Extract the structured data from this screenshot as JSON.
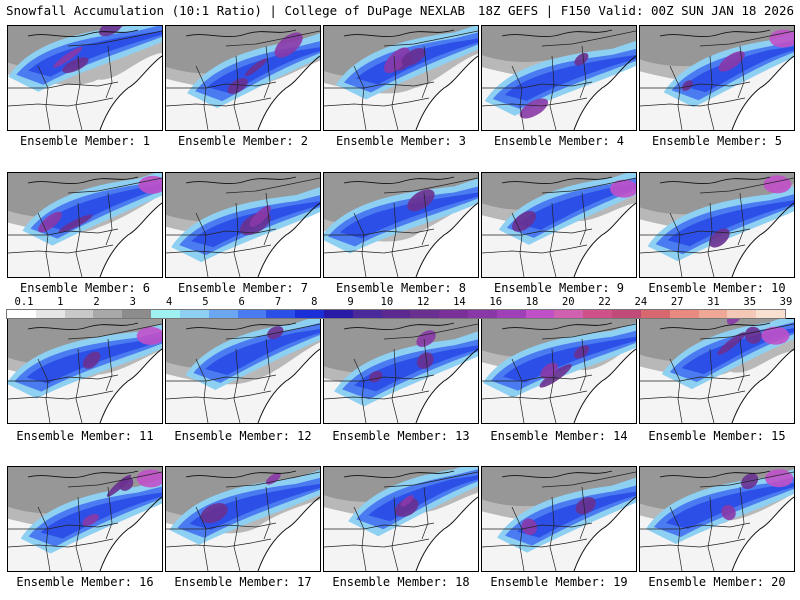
{
  "header": {
    "left_title": "Snowfall Accumulation (10:1 Ratio) | College of DuPage NEXLAB",
    "right_title": "18Z GEFS | F150 Valid: 00Z SUN JAN 18 2026"
  },
  "legend": {
    "tick_labels": [
      "0.1",
      "1",
      "2",
      "3",
      "4",
      "5",
      "6",
      "7",
      "8",
      "9",
      "10",
      "12",
      "14",
      "16",
      "18",
      "20",
      "22",
      "24",
      "27",
      "31",
      "35",
      "39"
    ],
    "colors": [
      "#ffffff",
      "#e6e6e6",
      "#c8c8c8",
      "#a8a8a8",
      "#8c8c8c",
      "#9ff1f1",
      "#8ed0f2",
      "#6aa7f0",
      "#4a7bf0",
      "#2c4fe8",
      "#1a2fd8",
      "#2a1aa8",
      "#4a2a9a",
      "#5a2a90",
      "#6a3090",
      "#7a3098",
      "#8a38a8",
      "#a040b8",
      "#c050c8",
      "#d060b0",
      "#d0508a",
      "#c04a78",
      "#d86870",
      "#e88a80",
      "#f0a896",
      "#f4c8b6",
      "#f8e0d0"
    ]
  },
  "members": [
    {
      "label": "Ensemble Member: 1",
      "variant": 1
    },
    {
      "label": "Ensemble Member: 2",
      "variant": 2
    },
    {
      "label": "Ensemble Member: 3",
      "variant": 3
    },
    {
      "label": "Ensemble Member: 4",
      "variant": 4
    },
    {
      "label": "Ensemble Member: 5",
      "variant": 5
    },
    {
      "label": "Ensemble Member: 6",
      "variant": 6
    },
    {
      "label": "Ensemble Member: 7",
      "variant": 7
    },
    {
      "label": "Ensemble Member: 8",
      "variant": 8
    },
    {
      "label": "Ensemble Member: 9",
      "variant": 9
    },
    {
      "label": "Ensemble Member: 10",
      "variant": 10
    },
    {
      "label": "Ensemble Member: 11",
      "variant": 11
    },
    {
      "label": "Ensemble Member: 12",
      "variant": 12
    },
    {
      "label": "Ensemble Member: 13",
      "variant": 13
    },
    {
      "label": "Ensemble Member: 14",
      "variant": 14
    },
    {
      "label": "Ensemble Member: 15",
      "variant": 15
    },
    {
      "label": "Ensemble Member: 16",
      "variant": 16
    },
    {
      "label": "Ensemble Member: 17",
      "variant": 17
    },
    {
      "label": "Ensemble Member: 18",
      "variant": 18
    },
    {
      "label": "Ensemble Member: 19",
      "variant": 19
    },
    {
      "label": "Ensemble Member: 20",
      "variant": 20
    }
  ]
}
